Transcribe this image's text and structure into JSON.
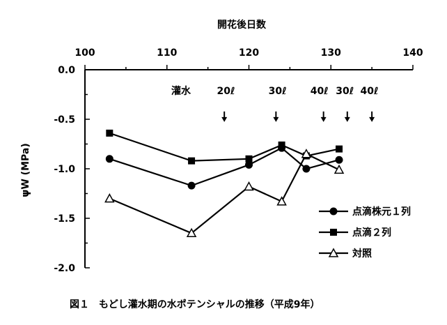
{
  "chart_data": {
    "type": "line",
    "title": "",
    "caption": "図１　もどし灌水期の水ポテンシャルの推移（平成9年）",
    "xlabel": "開花後日数",
    "ylabel": "ψW (MPa)",
    "xlim": [
      100,
      140
    ],
    "ylim": [
      -2.0,
      0.0
    ],
    "x_ticks": [
      "100",
      "110",
      "120",
      "130",
      "140"
    ],
    "y_ticks": [
      "0.0",
      "-0.5",
      "-1.0",
      "-1.5",
      "-2.0"
    ],
    "x_axis_position": "top",
    "grid": false,
    "legend_position": "right",
    "series": [
      {
        "name": "点滴株元１列",
        "marker": "circle",
        "points": [
          {
            "x": 103,
            "y": -0.9
          },
          {
            "x": 113,
            "y": -1.17
          },
          {
            "x": 120,
            "y": -0.96
          },
          {
            "x": 124,
            "y": -0.79
          },
          {
            "x": 127,
            "y": -1.0
          },
          {
            "x": 131,
            "y": -0.91
          }
        ]
      },
      {
        "name": "点滴２列",
        "marker": "square",
        "points": [
          {
            "x": 103,
            "y": -0.64
          },
          {
            "x": 113,
            "y": -0.92
          },
          {
            "x": 120,
            "y": -0.9
          },
          {
            "x": 124,
            "y": -0.76
          },
          {
            "x": 127,
            "y": -0.87
          },
          {
            "x": 131,
            "y": -0.8
          }
        ]
      },
      {
        "name": "対照",
        "marker": "triangle",
        "points": [
          {
            "x": 103,
            "y": -1.3
          },
          {
            "x": 113,
            "y": -1.65
          },
          {
            "x": 120,
            "y": -1.18
          },
          {
            "x": 124,
            "y": -1.33
          },
          {
            "x": 127,
            "y": -0.85
          },
          {
            "x": 131,
            "y": -1.01
          }
        ]
      }
    ],
    "annotations": {
      "irrigation_label": "灌水",
      "amount_labels": [
        {
          "text": "20ℓ",
          "x": 117.2
        },
        {
          "text": "30ℓ",
          "x": 123.5
        },
        {
          "text": "40ℓ",
          "x": 128.6
        },
        {
          "text": "30ℓ",
          "x": 131.7
        },
        {
          "text": "40ℓ",
          "x": 134.7
        }
      ],
      "arrows": [
        {
          "x": 117.0,
          "y": -0.52
        },
        {
          "x": 123.3,
          "y": -0.52
        },
        {
          "x": 129.1,
          "y": -0.52
        },
        {
          "x": 132.0,
          "y": -0.52
        },
        {
          "x": 135.0,
          "y": -0.52
        }
      ]
    }
  }
}
